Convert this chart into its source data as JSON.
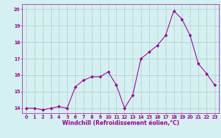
{
  "x": [
    0,
    1,
    2,
    3,
    4,
    5,
    6,
    7,
    8,
    9,
    10,
    11,
    12,
    13,
    14,
    15,
    16,
    17,
    18,
    19,
    20,
    21,
    22,
    23
  ],
  "y": [
    14.0,
    14.0,
    13.9,
    14.0,
    14.1,
    14.0,
    15.3,
    15.7,
    15.9,
    15.9,
    16.2,
    15.4,
    14.0,
    14.8,
    17.0,
    17.4,
    17.8,
    18.4,
    19.9,
    19.4,
    18.4,
    16.7,
    16.1,
    15.4
  ],
  "line_color": "#990099",
  "marker": "D",
  "marker_size": 2.0,
  "bg_color": "#d5f0f0",
  "grid_color": "#aacccc",
  "xlabel": "Windchill (Refroidissement éolien,°C)",
  "ylim": [
    13.7,
    20.3
  ],
  "xlim": [
    -0.5,
    23.5
  ],
  "yticks": [
    14,
    15,
    16,
    17,
    18,
    19,
    20
  ],
  "xticks": [
    0,
    1,
    2,
    3,
    4,
    5,
    6,
    7,
    8,
    9,
    10,
    11,
    12,
    13,
    14,
    15,
    16,
    17,
    18,
    19,
    20,
    21,
    22,
    23
  ],
  "tick_color": "#990099",
  "label_color": "#990099",
  "tick_fontsize": 4.8,
  "xlabel_fontsize": 5.8,
  "linewidth": 0.8
}
